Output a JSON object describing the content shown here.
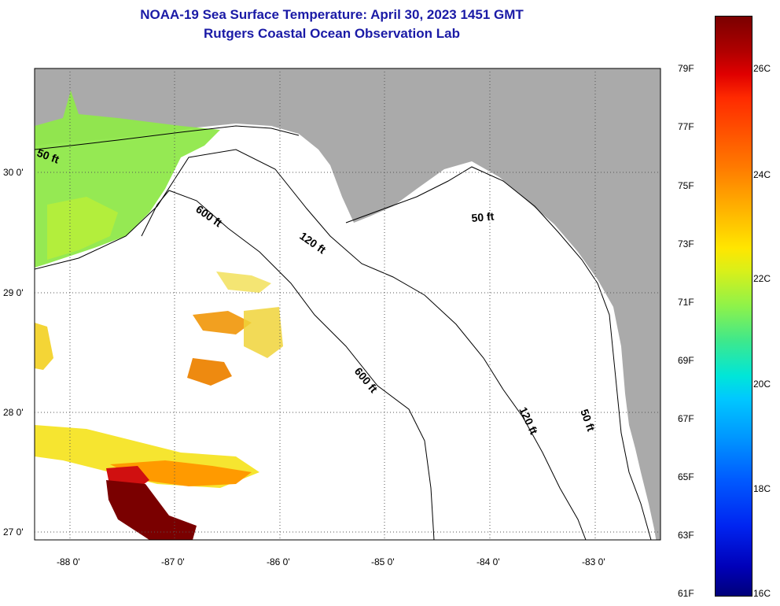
{
  "title_line1": "NOAA-19 Sea Surface Temperature:  April 30, 2023 1451 GMT",
  "title_line2": "Rutgers Coastal Ocean Observation Lab",
  "axes": {
    "lat_labels": [
      "30 0'",
      "29 0'",
      "28 0'",
      "27 0'"
    ],
    "lon_labels": [
      "-88 0'",
      "-87 0'",
      "-86 0'",
      "-85 0'",
      "-84 0'",
      "-83 0'"
    ]
  },
  "contours": {
    "c50_left": "50 ft",
    "c600_upper": "600 ft",
    "c120_upper": "120 ft",
    "c50_right_upper": "50 ft",
    "c600_lower": "600 ft",
    "c120_lower": "120 ft",
    "c50_lower": "50 ft"
  },
  "colorbar": {
    "fahrenheit": [
      "79F",
      "77F",
      "75F",
      "73F",
      "71F",
      "69F",
      "67F",
      "65F",
      "63F",
      "61F"
    ],
    "celsius": [
      "26C",
      "24C",
      "22C",
      "20C",
      "18C",
      "16C"
    ]
  },
  "colors": {
    "land": "#aaaaaa",
    "water": "#ffffff",
    "title": "#1a1aa6"
  }
}
